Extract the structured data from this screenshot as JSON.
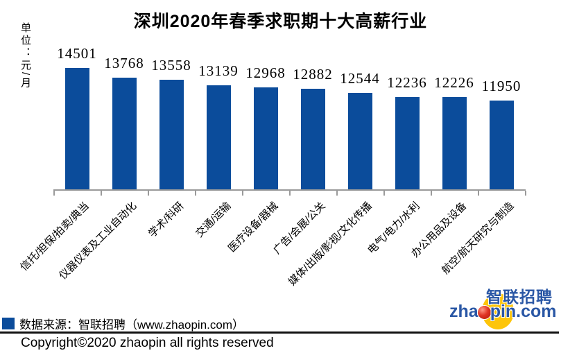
{
  "title": "深圳2020年春季求职期十大高薪行业",
  "unit_label": "单位：元/月",
  "chart_data": {
    "type": "bar",
    "title": "深圳2020年春季求职期十大高薪行业",
    "ylabel": "单位：元/月",
    "categories": [
      "信托/担保/拍卖/典当",
      "仪器仪表及工业自动化",
      "学术/科研",
      "交通/运输",
      "医疗设备/器械",
      "广告/会展/公关",
      "媒体/出版/影视/文化传播",
      "电气/电力/水利",
      "办公用品及设备",
      "航空/航天研究与制造"
    ],
    "values": [
      14501,
      13768,
      13558,
      13139,
      12968,
      12882,
      12544,
      12236,
      12226,
      11950
    ],
    "ylim": [
      5000,
      15000
    ],
    "grid": false,
    "value_labels_shown": true,
    "x_tick_rotation": 45,
    "bar_color": "#0b4c9b",
    "axis_color": "#9a9a9a",
    "legend_position": "bottom-left"
  },
  "legend": {
    "marker_color": "#0b4c9b",
    "text": "数据来源：智联招聘（www.zhaopin.com）"
  },
  "footer": {
    "copyright": "Copyright©2020 zhaopin all rights reserved"
  },
  "logo": {
    "cn": "智联招聘",
    "en_pre": "zha",
    "en_post": "pin.com",
    "blue": "#2a57a5",
    "yellow": "#fdc50a",
    "red": "#d6281e"
  }
}
